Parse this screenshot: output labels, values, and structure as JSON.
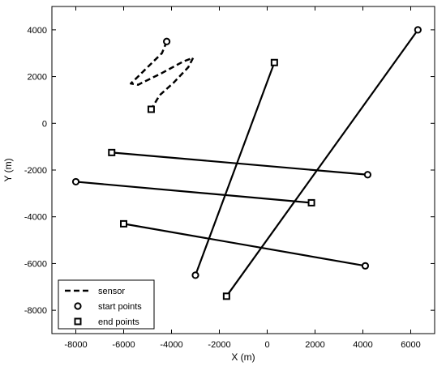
{
  "chart_data": {
    "type": "line",
    "xlabel": "X (m)",
    "ylabel": "Y (m)",
    "xlim": [
      -9000,
      7000
    ],
    "ylim": [
      -9000,
      5000
    ],
    "xticks": [
      -8000,
      -6000,
      -4000,
      -2000,
      0,
      2000,
      4000,
      6000
    ],
    "yticks": [
      -8000,
      -6000,
      -4000,
      -2000,
      0,
      2000,
      4000
    ],
    "grid": false,
    "legend_position": "bottom-left",
    "legend": [
      {
        "label": "sensor",
        "marker": "dashed-line"
      },
      {
        "label": "start points",
        "marker": "circle"
      },
      {
        "label": "end points",
        "marker": "square"
      }
    ],
    "sensor": {
      "name": "sensor",
      "style": "dashed",
      "x": [
        -4200,
        -4400,
        -4900,
        -5400,
        -5700,
        -5400,
        -4400,
        -3500,
        -3100,
        -3300,
        -3900,
        -4500,
        -4850
      ],
      "y": [
        3500,
        3000,
        2500,
        2000,
        1700,
        1650,
        2150,
        2650,
        2800,
        2400,
        1750,
        1200,
        600
      ]
    },
    "tracks": [
      {
        "start": [
          4200,
          -2200
        ],
        "end": [
          -6500,
          -1250
        ]
      },
      {
        "start": [
          -8000,
          -2500
        ],
        "end": [
          1850,
          -3400
        ]
      },
      {
        "start": [
          4100,
          -6100
        ],
        "end": [
          -6000,
          -4300
        ]
      },
      {
        "start": [
          -3000,
          -6500
        ],
        "end": [
          300,
          2600
        ]
      },
      {
        "start": [
          6300,
          4000
        ],
        "end": [
          -1700,
          -7400
        ]
      }
    ],
    "colors": {
      "line": "#000000",
      "background": "#ffffff"
    }
  }
}
